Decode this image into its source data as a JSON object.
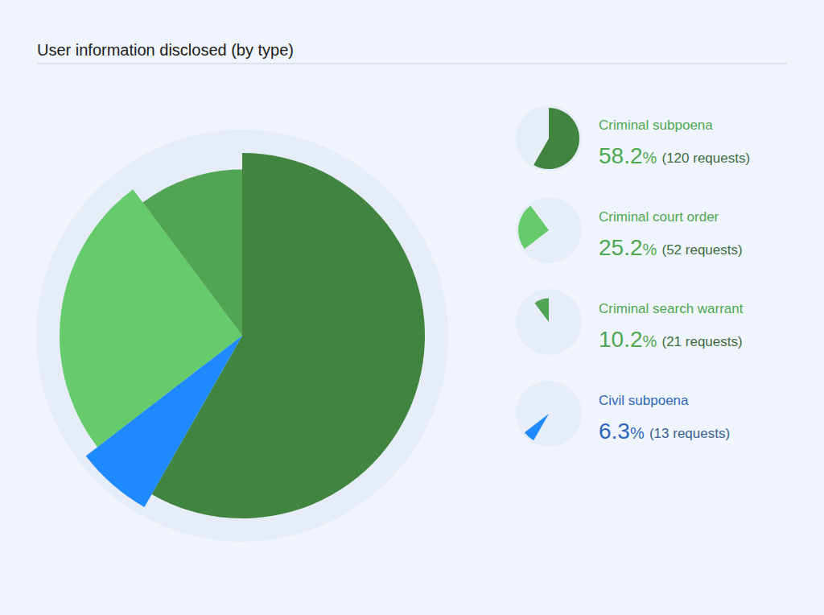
{
  "chart_data": {
    "type": "pie",
    "title": "User information disclosed (by type)",
    "categories": [
      "Criminal subpoena",
      "Criminal court order",
      "Criminal search warrant",
      "Civil subpoena"
    ],
    "values": [
      58.2,
      25.2,
      10.2,
      6.3
    ],
    "value_labels": [
      "58.2%",
      "25.2%",
      "10.2%",
      "6.3%"
    ],
    "request_labels": [
      "(120 requests)",
      "(52 requests)",
      "(21 requests)",
      "(13 requests)"
    ],
    "colors": [
      "#40843f",
      "#66cb6a",
      "#52a455",
      "#1f89ff"
    ],
    "legend": "right"
  }
}
